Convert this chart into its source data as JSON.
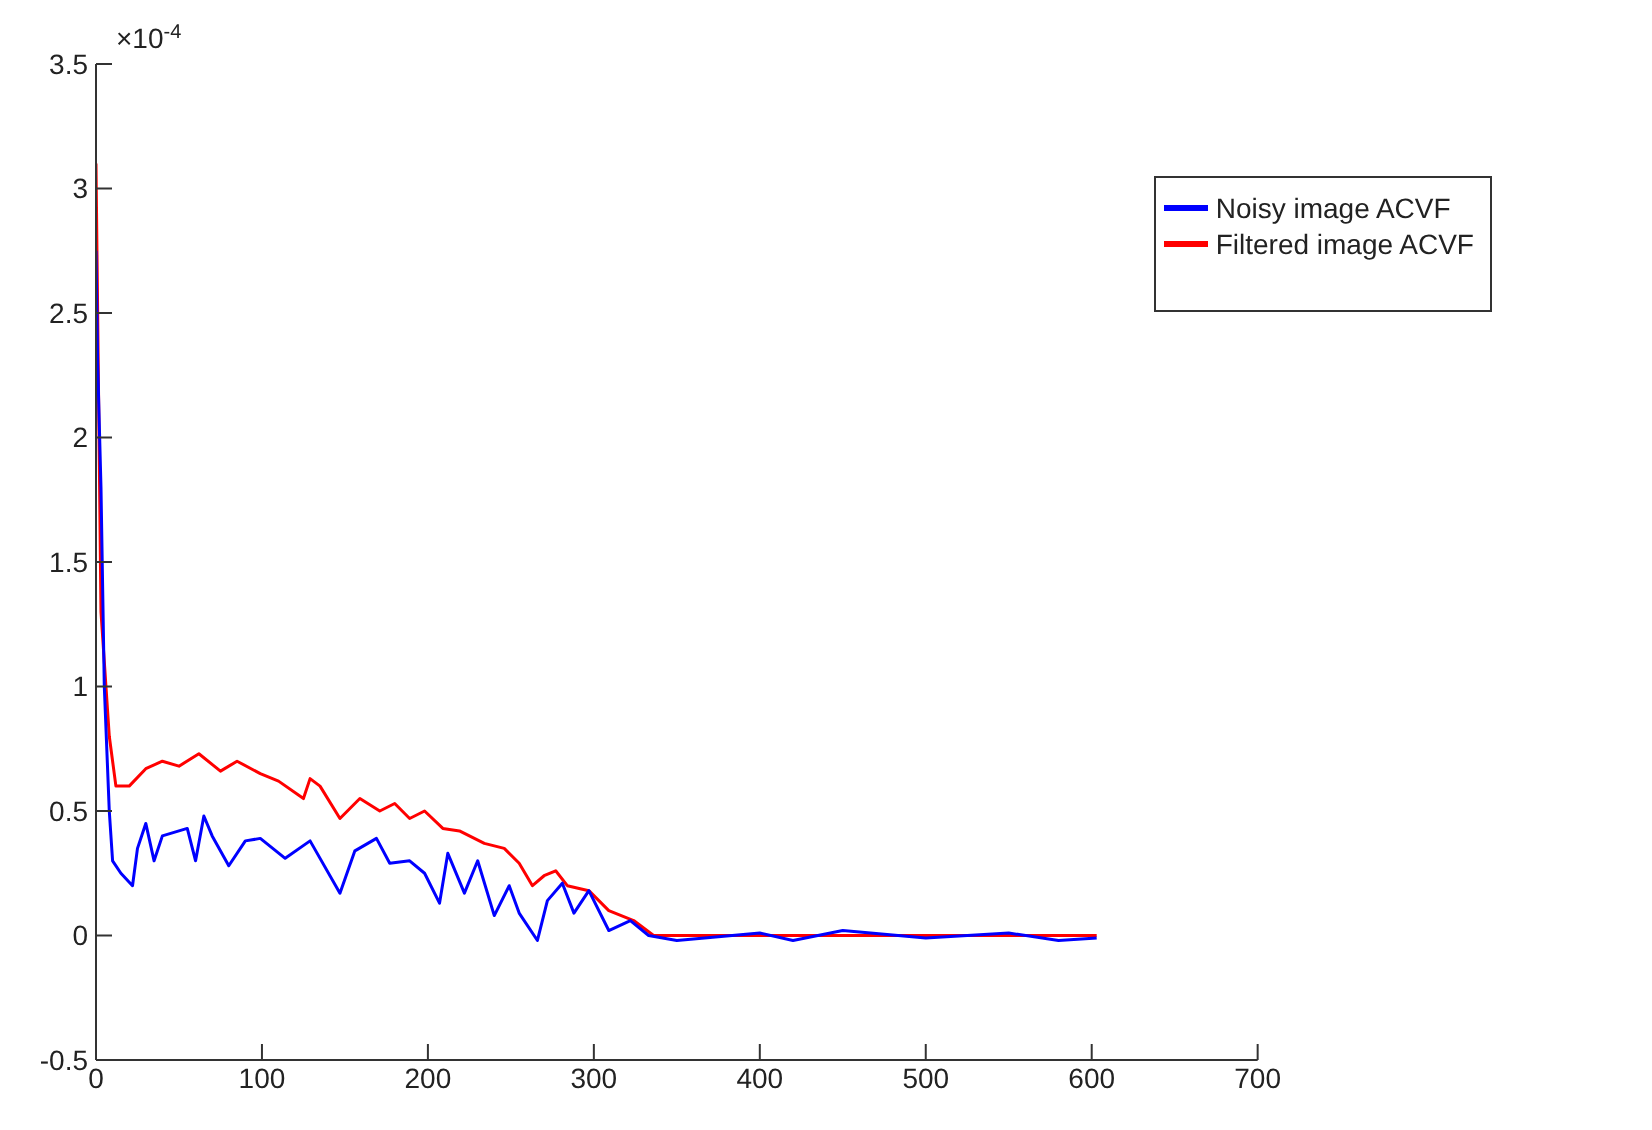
{
  "chart_data": {
    "type": "line",
    "annotations": [
      "×10$^{-4}$"
    ],
    "xlim": [
      0,
      700
    ],
    "xticks": [
      0,
      100,
      200,
      300,
      400,
      500,
      600,
      700
    ],
    "ylim": [
      -0.5,
      3.5
    ],
    "yticks": [
      -0.5,
      0,
      0.5,
      1,
      1.5,
      2,
      2.5,
      3,
      3.5
    ],
    "grid": false,
    "legend": "top right",
    "line_style": "solid",
    "marker": "none",
    "series": [
      {
        "name": "Noisy image ACVF",
        "color": "#0000ff",
        "x": [
          0,
          1,
          3,
          5,
          8,
          10,
          15,
          22,
          25,
          30,
          35,
          40,
          55,
          60,
          65,
          70,
          80,
          90,
          99,
          114,
          129,
          147,
          156,
          169,
          177,
          189,
          198,
          207,
          212,
          222,
          230,
          240,
          249,
          255,
          266,
          272,
          281,
          288,
          297,
          309,
          322,
          333,
          350,
          400,
          420,
          450,
          500,
          550,
          580,
          603
        ],
        "values": [
          2.75,
          2.3,
          1.8,
          1.0,
          0.5,
          0.3,
          0.25,
          0.2,
          0.35,
          0.45,
          0.3,
          0.4,
          0.43,
          0.3,
          0.48,
          0.4,
          0.28,
          0.38,
          0.39,
          0.31,
          0.38,
          0.17,
          0.34,
          0.39,
          0.29,
          0.3,
          0.25,
          0.13,
          0.33,
          0.17,
          0.3,
          0.08,
          0.2,
          0.09,
          -0.02,
          0.14,
          0.21,
          0.09,
          0.18,
          0.02,
          0.06,
          0,
          -0.02,
          0.01,
          -0.02,
          0.02,
          -0.01,
          0.01,
          -0.02,
          -0.01
        ]
      },
      {
        "name": "Filtered image ACVF",
        "color": "#ff0000",
        "x": [
          0,
          3,
          8,
          12,
          20,
          30,
          40,
          50,
          62,
          75,
          85,
          99,
          110,
          125,
          129,
          135,
          147,
          159,
          171,
          180,
          189,
          198,
          209,
          219,
          234,
          246,
          255,
          263,
          270,
          277,
          284,
          297,
          309,
          324,
          336,
          400,
          500,
          603
        ],
        "values": [
          3.1,
          1.3,
          0.8,
          0.6,
          0.6,
          0.67,
          0.7,
          0.68,
          0.73,
          0.66,
          0.7,
          0.65,
          0.62,
          0.55,
          0.63,
          0.6,
          0.47,
          0.55,
          0.5,
          0.53,
          0.47,
          0.5,
          0.43,
          0.42,
          0.37,
          0.35,
          0.29,
          0.2,
          0.24,
          0.26,
          0.2,
          0.18,
          0.1,
          0.06,
          0,
          0,
          0,
          0
        ]
      }
    ]
  }
}
